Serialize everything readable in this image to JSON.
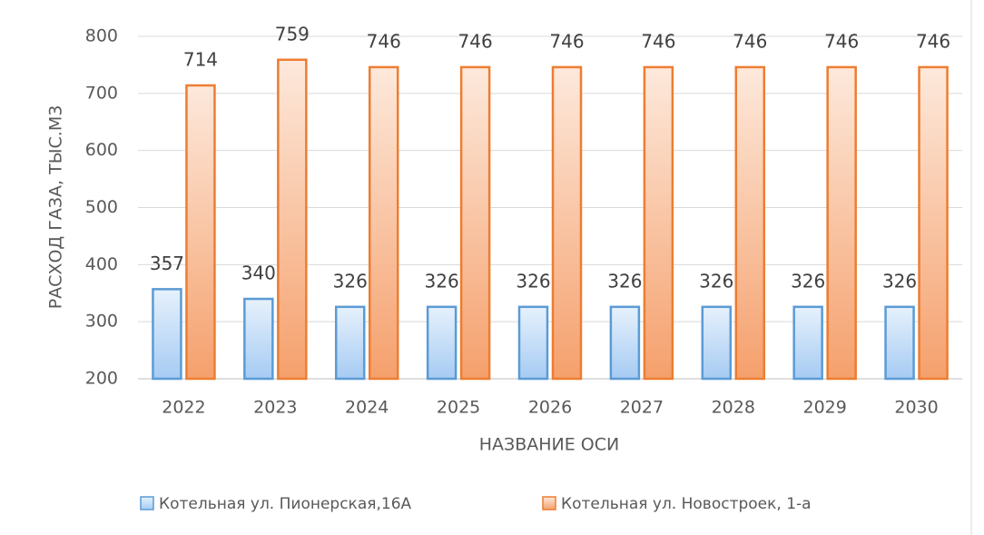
{
  "chart_data": {
    "type": "bar",
    "categories": [
      "2022",
      "2023",
      "2024",
      "2025",
      "2026",
      "2027",
      "2028",
      "2029",
      "2030"
    ],
    "series": [
      {
        "name": "Котельная ул. Пионерская,16А",
        "color": "#5b9bd5",
        "values": [
          357,
          340,
          326,
          326,
          326,
          326,
          326,
          326,
          326
        ]
      },
      {
        "name": "Котельная ул. Новостроек, 1-а",
        "color": "#ed7d31",
        "values": [
          714,
          759,
          746,
          746,
          746,
          746,
          746,
          746,
          746
        ]
      }
    ],
    "xlabel": "НАЗВАНИЕ ОСИ",
    "ylabel": "РАСХОД ГАЗА, ТЫС.М3",
    "ylim": [
      200,
      800
    ],
    "yticks": [
      200,
      300,
      400,
      500,
      600,
      700,
      800
    ],
    "grid": true,
    "legend": "bottom"
  }
}
